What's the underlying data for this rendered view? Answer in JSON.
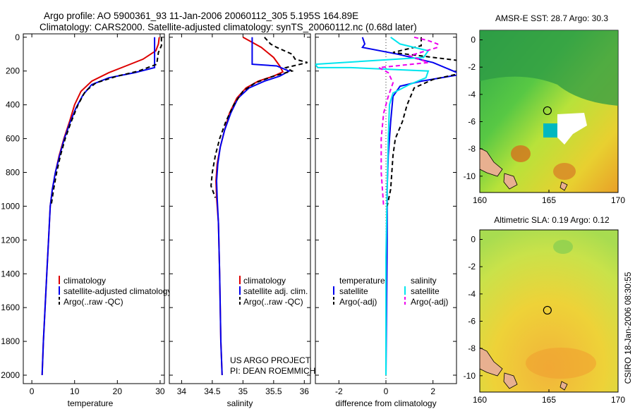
{
  "header": {
    "line1": "Argo profile: AO 5900361_93 11-Jan-2006 20060112_305 5.195S 164.89E",
    "line2": "Climatology: CARS2000. Satellite-adjusted climatology: synTS_20060112.nc (0.68d later)"
  },
  "side_label": "CSIRO 18-Jan-2006 08:30:55",
  "colors": {
    "clim": "#dd0000",
    "sat": "#0000ee",
    "argo": "#000000",
    "sat_s": "#00e5ee",
    "argo_s": "#ee00ee"
  },
  "chart_data": [
    {
      "type": "line",
      "name": "temperature-profile",
      "xlabel": "temperature",
      "xlim": [
        -2,
        31
      ],
      "ylim": [
        2050,
        -20
      ],
      "xticks": [
        0,
        10,
        20,
        30
      ],
      "yticks": [
        0,
        200,
        400,
        600,
        800,
        1000,
        1200,
        1400,
        1600,
        1800,
        2000
      ],
      "legend": [
        "climatology",
        "satellite-adjusted climatology",
        "Argo(..raw -QC)"
      ],
      "series": [
        {
          "name": "climatology",
          "color": "#dd0000",
          "dash": "none",
          "points": [
            [
              29.8,
              0
            ],
            [
              29.6,
              40
            ],
            [
              29,
              80
            ],
            [
              26,
              130
            ],
            [
              22,
              170
            ],
            [
              18,
              210
            ],
            [
              14,
              260
            ],
            [
              11.5,
              320
            ],
            [
              10,
              400
            ],
            [
              8.8,
              500
            ],
            [
              7.5,
              600
            ],
            [
              6.4,
              700
            ],
            [
              5.5,
              800
            ],
            [
              4.8,
              900
            ],
            [
              4.3,
              1000
            ],
            [
              3.9,
              1200
            ],
            [
              3.5,
              1400
            ],
            [
              3.1,
              1600
            ],
            [
              2.7,
              1800
            ],
            [
              2.4,
              2000
            ]
          ]
        },
        {
          "name": "satellite-adjusted climatology",
          "color": "#0000ee",
          "dash": "none",
          "points": [
            [
              28.7,
              0
            ],
            [
              28.7,
              180
            ],
            [
              24,
              210
            ],
            [
              18,
              240
            ],
            [
              14,
              280
            ],
            [
              12,
              340
            ],
            [
              10.3,
              420
            ],
            [
              9,
              500
            ],
            [
              7.6,
              600
            ],
            [
              6.5,
              700
            ],
            [
              5.5,
              800
            ],
            [
              4.8,
              900
            ],
            [
              4.3,
              1000
            ],
            [
              3.9,
              1200
            ],
            [
              3.5,
              1400
            ],
            [
              3.1,
              1600
            ],
            [
              2.7,
              1800
            ],
            [
              2.4,
              2000
            ]
          ]
        },
        {
          "name": "Argo(..raw -QC)",
          "color": "#000000",
          "dash": "6,4",
          "points": [
            [
              30.3,
              0
            ],
            [
              30.3,
              50
            ],
            [
              29.6,
              90
            ],
            [
              29.2,
              160
            ],
            [
              25,
              200
            ],
            [
              20,
              230
            ],
            [
              15,
              270
            ],
            [
              12.5,
              320
            ],
            [
              10.8,
              400
            ],
            [
              9.2,
              500
            ],
            [
              7.8,
              600
            ],
            [
              6.7,
              700
            ],
            [
              5.8,
              800
            ],
            [
              5.1,
              900
            ],
            [
              4.5,
              1000
            ]
          ]
        }
      ]
    },
    {
      "type": "line",
      "name": "salinity-profile",
      "xlabel": "salinity",
      "xlim": [
        33.8,
        36.1
      ],
      "ylim": [
        2050,
        -20
      ],
      "xticks": [
        34,
        34.5,
        35,
        35.5,
        36
      ],
      "legend": [
        "climatology",
        "satellite adj. clim.",
        "Argo(..raw -QC)"
      ],
      "annotations": [
        "US ARGO PROJECT",
        "PI: DEAN ROEMMICH"
      ],
      "series": [
        {
          "name": "climatology",
          "color": "#dd0000",
          "dash": "none",
          "points": [
            [
              35.0,
              0
            ],
            [
              35.3,
              60
            ],
            [
              35.5,
              120
            ],
            [
              35.6,
              170
            ],
            [
              35.65,
              205
            ],
            [
              35.5,
              230
            ],
            [
              35.25,
              260
            ],
            [
              35.05,
              300
            ],
            [
              34.9,
              360
            ],
            [
              34.78,
              450
            ],
            [
              34.7,
              550
            ],
            [
              34.63,
              650
            ],
            [
              34.58,
              750
            ],
            [
              34.56,
              850
            ],
            [
              34.57,
              950
            ],
            [
              34.6,
              1100
            ],
            [
              34.62,
              1400
            ],
            [
              34.64,
              1800
            ],
            [
              34.66,
              2000
            ]
          ]
        },
        {
          "name": "satellite adj. clim.",
          "color": "#0000ee",
          "dash": "none",
          "points": [
            [
              35.15,
              0
            ],
            [
              35.15,
              160
            ],
            [
              35.55,
              170
            ],
            [
              35.75,
              200
            ],
            [
              35.6,
              230
            ],
            [
              35.35,
              260
            ],
            [
              35.1,
              300
            ],
            [
              34.92,
              360
            ],
            [
              34.8,
              450
            ],
            [
              34.7,
              550
            ],
            [
              34.63,
              650
            ],
            [
              34.59,
              750
            ],
            [
              34.57,
              850
            ],
            [
              34.58,
              950
            ],
            [
              34.6,
              1100
            ],
            [
              34.62,
              1400
            ],
            [
              34.64,
              1800
            ],
            [
              34.66,
              2000
            ]
          ]
        },
        {
          "name": "Argo(..raw -QC)",
          "color": "#000000",
          "dash": "6,4",
          "points": [
            [
              35.35,
              0
            ],
            [
              35.45,
              40
            ],
            [
              35.55,
              60
            ],
            [
              35.8,
              100
            ],
            [
              35.85,
              130
            ],
            [
              36.05,
              150
            ],
            [
              35.7,
              180
            ],
            [
              35.8,
              200
            ],
            [
              35.5,
              230
            ],
            [
              35.2,
              270
            ],
            [
              35.0,
              320
            ],
            [
              34.85,
              400
            ],
            [
              34.72,
              500
            ],
            [
              34.62,
              600
            ],
            [
              34.55,
              700
            ],
            [
              34.5,
              800
            ],
            [
              34.48,
              880
            ],
            [
              34.55,
              950
            ]
          ]
        }
      ]
    },
    {
      "type": "line",
      "name": "difference-profile",
      "xlabel": "difference from climatology",
      "xlim": [
        -3,
        3
      ],
      "ylim": [
        2050,
        -20
      ],
      "xticks": [
        -2,
        0,
        2
      ],
      "legend_left_title": "temperature",
      "legend_right_title": "salinity",
      "legend": [
        "satellite",
        "Argo(-adj)",
        "satellite",
        "Argo(-adj)"
      ],
      "series": [
        {
          "name": "temperature satellite",
          "color": "#0000ee",
          "dash": "none",
          "points": [
            [
              -1.0,
              0
            ],
            [
              -0.9,
              40
            ],
            [
              -1.0,
              60
            ],
            [
              0.5,
              100
            ],
            [
              2,
              150
            ],
            [
              3.2,
              220
            ],
            [
              1.5,
              260
            ],
            [
              0.6,
              290
            ],
            [
              0.3,
              350
            ],
            [
              0.2,
              500
            ],
            [
              0.1,
              700
            ],
            [
              0.05,
              900
            ],
            [
              0.05,
              1200
            ],
            [
              0,
              2000
            ]
          ]
        },
        {
          "name": "temperature Argo(-adj)",
          "color": "#000000",
          "dash": "6,4",
          "points": [
            [
              1.5,
              0
            ],
            [
              1.5,
              50
            ],
            [
              0.3,
              90
            ],
            [
              3.2,
              140
            ],
            [
              3.3,
              210
            ],
            [
              2.0,
              250
            ],
            [
              1.2,
              300
            ],
            [
              0.9,
              400
            ],
            [
              0.7,
              500
            ],
            [
              0.4,
              600
            ],
            [
              0.3,
              700
            ],
            [
              0.2,
              900
            ],
            [
              0.05,
              1000
            ]
          ]
        },
        {
          "name": "salinity satellite",
          "color": "#00e5ee",
          "dash": "none",
          "points": [
            [
              0.2,
              0
            ],
            [
              0.6,
              40
            ],
            [
              1.8,
              80
            ],
            [
              1.6,
              120
            ],
            [
              -3,
              160
            ],
            [
              -2.9,
              180
            ],
            [
              -1.5,
              180
            ],
            [
              1.8,
              200
            ],
            [
              1.7,
              240
            ],
            [
              1.0,
              280
            ],
            [
              0.3,
              330
            ],
            [
              0.15,
              400
            ],
            [
              0.1,
              600
            ],
            [
              0.05,
              900
            ],
            [
              0,
              1300
            ],
            [
              0,
              2000
            ]
          ]
        },
        {
          "name": "salinity Argo(-adj)",
          "color": "#ee00ee",
          "dash": "6,4",
          "points": [
            [
              1.2,
              0
            ],
            [
              1.8,
              20
            ],
            [
              2.2,
              40
            ],
            [
              2.2,
              60
            ],
            [
              1.0,
              110
            ],
            [
              1.8,
              150
            ],
            [
              -0.3,
              180
            ],
            [
              0.1,
              210
            ],
            [
              0.3,
              270
            ],
            [
              0.1,
              350
            ],
            [
              -0.1,
              450
            ],
            [
              -0.2,
              600
            ],
            [
              -0.2,
              800
            ],
            [
              -0.1,
              1000
            ]
          ]
        }
      ]
    }
  ],
  "maps": [
    {
      "name": "sst-map",
      "title": "AMSR-E SST: 28.7 Argo: 30.3",
      "xlim": [
        160,
        170
      ],
      "ylim": [
        -11.2,
        0.7
      ],
      "xticks": [
        160,
        165,
        170
      ],
      "yticks": [
        0,
        -2,
        -4,
        -6,
        -8,
        -10
      ],
      "marker": {
        "lon": 164.89,
        "lat": -5.195
      }
    },
    {
      "name": "sla-map",
      "title": "Altimetric SLA: 0.19 Argo: 0.12",
      "xlim": [
        160,
        170
      ],
      "ylim": [
        -11.2,
        0.7
      ],
      "xticks": [
        160,
        165,
        170
      ],
      "yticks": [
        0,
        -2,
        -4,
        -6,
        -8,
        -10
      ],
      "marker": {
        "lon": 164.89,
        "lat": -5.195
      }
    }
  ]
}
